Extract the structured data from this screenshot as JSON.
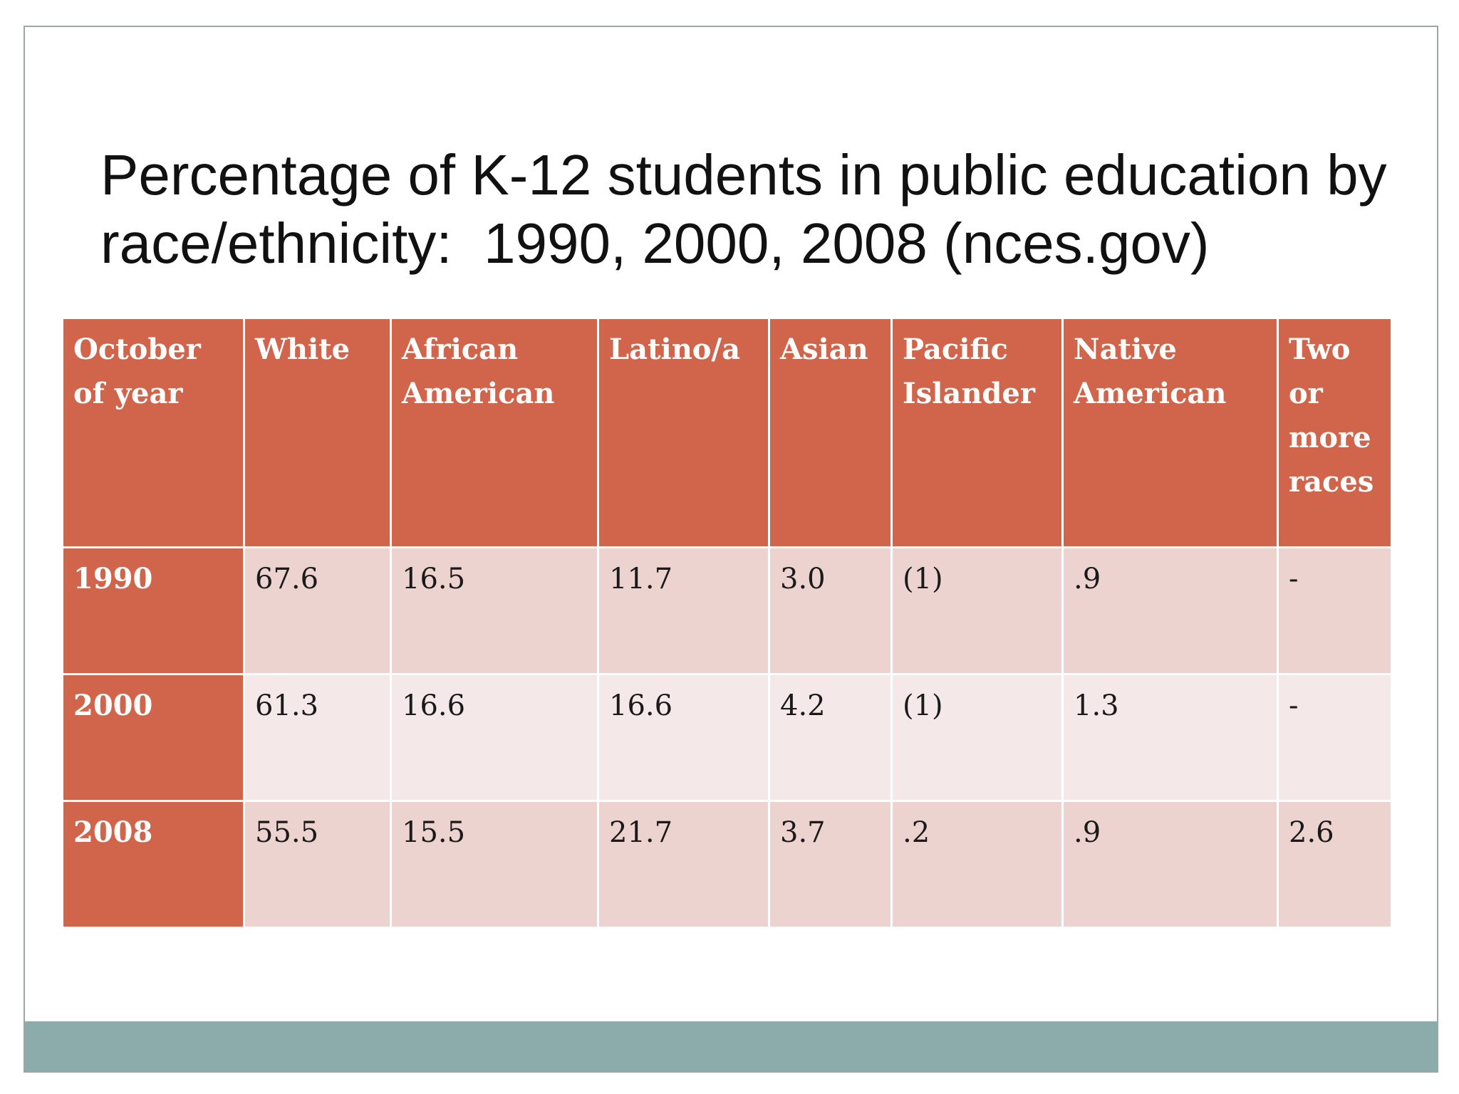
{
  "title": {
    "line1": "Percentage of K-12 students in public education by",
    "line2": "race/ethnicity:  1990, 2000, 2008 (nces.gov)"
  },
  "table": {
    "headers": [
      "October of year",
      "White",
      "African American",
      "Latino/a",
      "Asian",
      "Pacific Islander",
      "Native American",
      "Two or more races"
    ],
    "rows": [
      {
        "year": "1990",
        "cells": [
          "67.6",
          "16.5",
          "11.7",
          "3.0",
          "(1)",
          ".9",
          "-"
        ]
      },
      {
        "year": "2000",
        "cells": [
          "61.3",
          "16.6",
          "16.6",
          "4.2",
          "(1)",
          "1.3",
          "-"
        ]
      },
      {
        "year": "2008",
        "cells": [
          "55.5",
          "15.5",
          "21.7",
          "3.7",
          ".2",
          ".9",
          "2.6"
        ]
      }
    ]
  },
  "colors": {
    "header": "#d0654c",
    "row_odd": "#ecd3d0",
    "row_even": "#f5e8e9",
    "footer_bar": "#8cabab"
  }
}
